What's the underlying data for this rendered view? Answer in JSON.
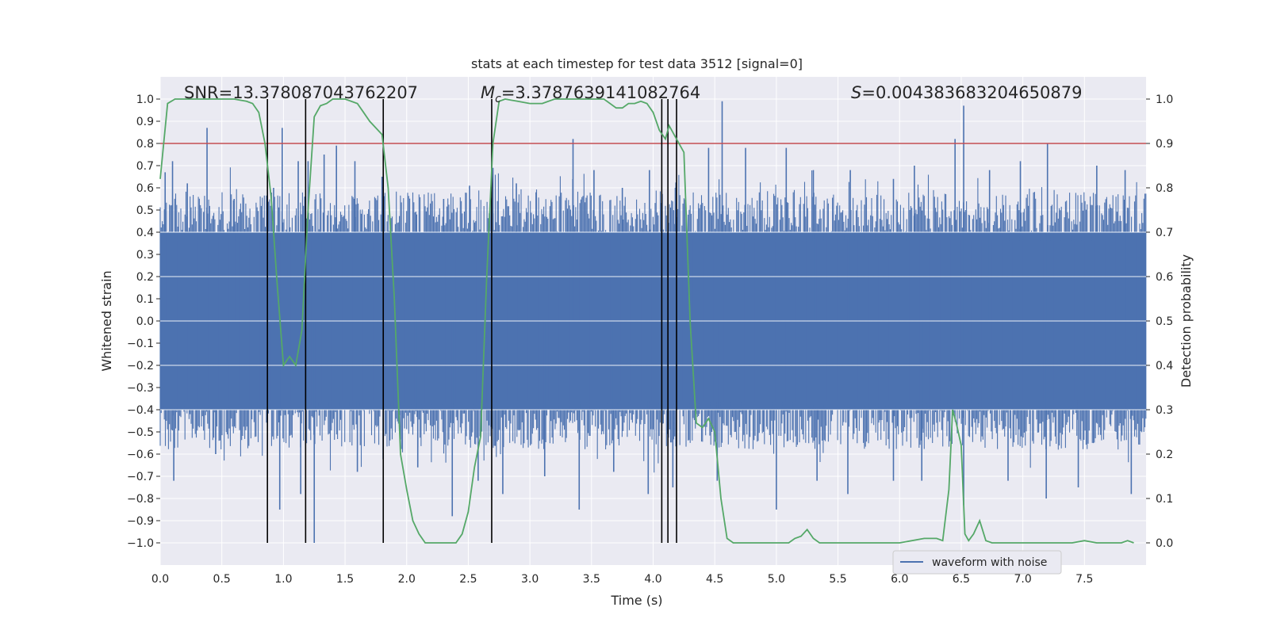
{
  "chart_data": {
    "type": "line",
    "title": "stats at each timestep for test data 3512 [signal=0]",
    "xlabel": "Time (s)",
    "ylabel_left": "Whitened strain",
    "ylabel_right": "Detection probability",
    "xlim": [
      0.0,
      8.0
    ],
    "ylim_left": [
      -1.1,
      1.1
    ],
    "ylim_right": [
      -0.05,
      1.05
    ],
    "x_ticks": [
      0.0,
      0.5,
      1.0,
      1.5,
      2.0,
      2.5,
      3.0,
      3.5,
      4.0,
      4.5,
      5.0,
      5.5,
      6.0,
      6.5,
      7.0,
      7.5
    ],
    "x_tick_labels": [
      "0.0",
      "0.5",
      "1.0",
      "1.5",
      "2.0",
      "2.5",
      "3.0",
      "3.5",
      "4.0",
      "4.5",
      "5.0",
      "5.5",
      "6.0",
      "6.5",
      "7.0",
      "7.5"
    ],
    "y_left_ticks": [
      1.0,
      0.9,
      0.8,
      0.7,
      0.6,
      0.5,
      0.4,
      0.3,
      0.2,
      0.1,
      0.0,
      -0.1,
      -0.2,
      -0.3,
      -0.4,
      -0.5,
      -0.6,
      -0.7,
      -0.8,
      -0.9,
      -1.0
    ],
    "y_left_tick_labels": [
      "1.0",
      "0.9",
      "0.8",
      "0.7",
      "0.6",
      "0.5",
      "0.4",
      "0.3",
      "0.2",
      "0.1",
      "0.0",
      "−0.1",
      "−0.2",
      "−0.3",
      "−0.4",
      "−0.5",
      "−0.6",
      "−0.7",
      "−0.8",
      "−0.9",
      "−1.0"
    ],
    "y_right_ticks": [
      1.0,
      0.9,
      0.8,
      0.7,
      0.6,
      0.5,
      0.4,
      0.3,
      0.2,
      0.1,
      0.0
    ],
    "y_right_tick_labels": [
      "1.0",
      "0.9",
      "0.8",
      "0.7",
      "0.6",
      "0.5",
      "0.4",
      "0.3",
      "0.2",
      "0.1",
      "0.0"
    ],
    "annotations": {
      "snr": "SNR=13.378087043762207",
      "mc_symbol": "M",
      "mc_sub": "c",
      "mc_value": "=3.3787639141082764",
      "s_symbol": "S",
      "s_value": "=0.004383683204650879"
    },
    "threshold": {
      "value_right_axis": 0.9,
      "color": "#c44e52"
    },
    "vertical_markers_x": [
      0.87,
      1.18,
      1.81,
      2.69,
      4.07,
      4.12,
      4.19
    ],
    "waveform": {
      "name": "waveform with noise",
      "color": "#4c72b0",
      "core_range": [
        -0.4,
        0.4
      ],
      "peaks_up": [
        [
          0.04,
          0.67
        ],
        [
          0.1,
          0.72
        ],
        [
          0.22,
          0.62
        ],
        [
          0.38,
          0.87
        ],
        [
          0.6,
          0.55
        ],
        [
          0.92,
          0.6
        ],
        [
          0.99,
          0.87
        ],
        [
          1.12,
          0.72
        ],
        [
          1.2,
          0.72
        ],
        [
          1.33,
          0.75
        ],
        [
          1.43,
          0.79
        ],
        [
          1.58,
          0.72
        ],
        [
          1.8,
          0.65
        ],
        [
          2.08,
          0.48
        ],
        [
          2.3,
          0.55
        ],
        [
          2.51,
          0.61
        ],
        [
          2.7,
          0.69
        ],
        [
          2.89,
          0.62
        ],
        [
          3.05,
          0.58
        ],
        [
          3.35,
          0.82
        ],
        [
          3.52,
          0.68
        ],
        [
          3.75,
          0.6
        ],
        [
          3.97,
          0.68
        ],
        [
          4.18,
          0.6
        ],
        [
          4.45,
          0.78
        ],
        [
          4.56,
          0.99
        ],
        [
          4.75,
          0.78
        ],
        [
          5.08,
          0.78
        ],
        [
          5.3,
          0.68
        ],
        [
          5.6,
          0.68
        ],
        [
          5.95,
          0.64
        ],
        [
          6.12,
          0.7
        ],
        [
          6.45,
          0.82
        ],
        [
          6.52,
          0.97
        ],
        [
          6.73,
          0.68
        ],
        [
          6.98,
          0.72
        ],
        [
          7.2,
          0.8
        ],
        [
          7.6,
          0.7
        ],
        [
          7.83,
          0.68
        ]
      ],
      "peaks_down": [
        [
          0.11,
          -0.72
        ],
        [
          0.45,
          -0.6
        ],
        [
          0.97,
          -0.85
        ],
        [
          1.14,
          -0.78
        ],
        [
          1.25,
          -1.0
        ],
        [
          1.6,
          -0.68
        ],
        [
          2.09,
          -0.66
        ],
        [
          2.37,
          -0.88
        ],
        [
          2.58,
          -0.72
        ],
        [
          2.78,
          -0.78
        ],
        [
          3.12,
          -0.7
        ],
        [
          3.4,
          -0.85
        ],
        [
          3.68,
          -0.68
        ],
        [
          3.96,
          -0.78
        ],
        [
          4.16,
          -0.75
        ],
        [
          4.52,
          -0.72
        ],
        [
          5.0,
          -0.85
        ],
        [
          5.33,
          -0.72
        ],
        [
          5.58,
          -0.78
        ],
        [
          5.95,
          -0.72
        ],
        [
          6.18,
          -0.72
        ],
        [
          6.52,
          -0.83
        ],
        [
          6.88,
          -0.72
        ],
        [
          7.19,
          -0.8
        ],
        [
          7.45,
          -0.75
        ],
        [
          7.88,
          -0.78
        ]
      ]
    },
    "detection_probability": {
      "color": "#55a868",
      "x": [
        0.0,
        0.06,
        0.12,
        0.2,
        0.3,
        0.4,
        0.5,
        0.6,
        0.7,
        0.75,
        0.8,
        0.85,
        0.9,
        0.95,
        1.0,
        1.05,
        1.1,
        1.15,
        1.2,
        1.25,
        1.3,
        1.35,
        1.4,
        1.5,
        1.6,
        1.65,
        1.7,
        1.8,
        1.85,
        1.9,
        1.95,
        2.0,
        2.05,
        2.1,
        2.15,
        2.2,
        2.3,
        2.4,
        2.45,
        2.5,
        2.55,
        2.6,
        2.65,
        2.7,
        2.75,
        2.8,
        2.9,
        3.0,
        3.1,
        3.2,
        3.3,
        3.4,
        3.5,
        3.6,
        3.7,
        3.75,
        3.8,
        3.85,
        3.9,
        3.95,
        4.0,
        4.05,
        4.1,
        4.13,
        4.19,
        4.25,
        4.3,
        4.35,
        4.4,
        4.45,
        4.5,
        4.55,
        4.6,
        4.65,
        4.7,
        4.8,
        4.9,
        5.0,
        5.1,
        5.15,
        5.2,
        5.25,
        5.3,
        5.35,
        5.4,
        5.5,
        5.6,
        5.8,
        6.0,
        6.2,
        6.3,
        6.35,
        6.4,
        6.43,
        6.46,
        6.5,
        6.53,
        6.56,
        6.6,
        6.65,
        6.7,
        6.75,
        6.8,
        6.85,
        6.9,
        7.0,
        7.1,
        7.2,
        7.3,
        7.4,
        7.5,
        7.6,
        7.7,
        7.8,
        7.85,
        7.9
      ],
      "y": [
        0.82,
        0.99,
        1.0,
        1.0,
        1.0,
        1.0,
        1.0,
        1.0,
        0.995,
        0.99,
        0.97,
        0.9,
        0.78,
        0.58,
        0.4,
        0.42,
        0.4,
        0.48,
        0.75,
        0.96,
        0.985,
        0.99,
        1.0,
        1.0,
        0.99,
        0.97,
        0.95,
        0.92,
        0.8,
        0.55,
        0.2,
        0.12,
        0.05,
        0.02,
        0.0,
        0.0,
        0.0,
        0.0,
        0.02,
        0.07,
        0.17,
        0.24,
        0.6,
        0.9,
        0.995,
        1.0,
        0.995,
        0.99,
        0.99,
        1.0,
        1.0,
        1.0,
        1.0,
        1.0,
        0.98,
        0.98,
        0.99,
        0.99,
        0.995,
        0.99,
        0.97,
        0.93,
        0.91,
        0.94,
        0.91,
        0.88,
        0.5,
        0.27,
        0.26,
        0.28,
        0.25,
        0.1,
        0.01,
        0.0,
        0.0,
        0.0,
        0.0,
        0.0,
        0.0,
        0.01,
        0.015,
        0.03,
        0.01,
        0.0,
        0.0,
        0.0,
        0.0,
        0.0,
        0.0,
        0.01,
        0.01,
        0.005,
        0.12,
        0.3,
        0.27,
        0.22,
        0.02,
        0.005,
        0.02,
        0.05,
        0.005,
        0.0,
        0.0,
        0.0,
        0.0,
        0.0,
        0.0,
        0.0,
        0.0,
        0.0,
        0.005,
        0.0,
        0.0,
        0.0,
        0.005,
        0.0
      ]
    },
    "legend": {
      "label": "waveform with noise",
      "placement": "bottom-right"
    },
    "grid": true,
    "axes_background": "#eaeaf2"
  }
}
